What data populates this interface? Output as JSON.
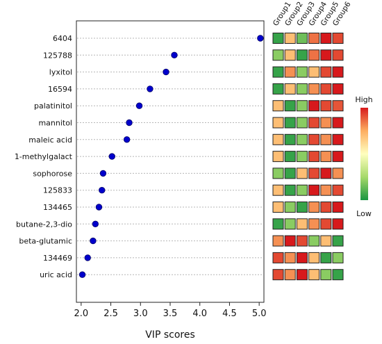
{
  "chart_data": {
    "type": "scatter",
    "title": "",
    "xlabel": "VIP scores",
    "ylabel": "",
    "xlim": [
      1.92,
      5.08
    ],
    "xticks": [
      "2.0",
      "2.5",
      "3.0",
      "3.5",
      "4.0",
      "4.5",
      "5.0"
    ],
    "grid": "dotted horizontal",
    "point_color": "#0000cc",
    "features": [
      {
        "name": "6404",
        "vip": 5.02
      },
      {
        "name": "125788",
        "vip": 3.57
      },
      {
        "name": "lyxitol",
        "vip": 3.43
      },
      {
        "name": "16594",
        "vip": 3.16
      },
      {
        "name": "palatinitol",
        "vip": 2.98
      },
      {
        "name": "mannitol",
        "vip": 2.81
      },
      {
        "name": "maleic acid",
        "vip": 2.77
      },
      {
        "name": "1-methylgalact",
        "vip": 2.52
      },
      {
        "name": "sophorose",
        "vip": 2.37
      },
      {
        "name": "125833",
        "vip": 2.35
      },
      {
        "name": "134465",
        "vip": 2.3
      },
      {
        "name": "butane-2,3-dio",
        "vip": 2.24
      },
      {
        "name": "beta-glutamic",
        "vip": 2.2
      },
      {
        "name": "134469",
        "vip": 2.11
      },
      {
        "name": "uric acid",
        "vip": 2.02
      }
    ],
    "heatmap": {
      "groups": [
        "Group1",
        "Group2",
        "Group3",
        "Group4",
        "Group5",
        "Group6"
      ],
      "levels": [
        [
          0.05,
          0.7,
          0.15,
          0.85,
          1.0,
          0.92
        ],
        [
          0.2,
          0.7,
          0.05,
          0.85,
          1.0,
          0.92
        ],
        [
          0.05,
          0.8,
          0.2,
          0.7,
          0.92,
          1.0
        ],
        [
          0.05,
          0.7,
          0.2,
          0.8,
          0.92,
          1.0
        ],
        [
          0.7,
          0.05,
          0.2,
          1.0,
          0.92,
          0.9
        ],
        [
          0.7,
          0.05,
          0.2,
          0.92,
          0.8,
          1.0
        ],
        [
          0.7,
          0.05,
          0.2,
          0.92,
          0.8,
          1.0
        ],
        [
          0.7,
          0.05,
          0.2,
          0.92,
          0.8,
          1.0
        ],
        [
          0.2,
          0.05,
          0.7,
          0.92,
          1.0,
          0.8
        ],
        [
          0.7,
          0.05,
          0.2,
          1.0,
          0.8,
          0.92
        ],
        [
          0.7,
          0.2,
          0.05,
          0.8,
          0.92,
          1.0
        ],
        [
          0.05,
          0.2,
          0.7,
          0.8,
          0.92,
          1.0
        ],
        [
          0.8,
          1.0,
          0.92,
          0.2,
          0.7,
          0.05
        ],
        [
          0.92,
          0.8,
          1.0,
          0.7,
          0.05,
          0.2
        ],
        [
          0.92,
          0.8,
          1.0,
          0.7,
          0.2,
          0.05
        ]
      ],
      "colors": {
        "low": "#1a9641",
        "mid_low": "#a6d96a",
        "mid": "#ffffbf",
        "mid_high": "#fdae61",
        "high": "#d7191c"
      }
    },
    "legend": {
      "high_label": "High",
      "low_label": "Low",
      "placement": "right"
    }
  }
}
